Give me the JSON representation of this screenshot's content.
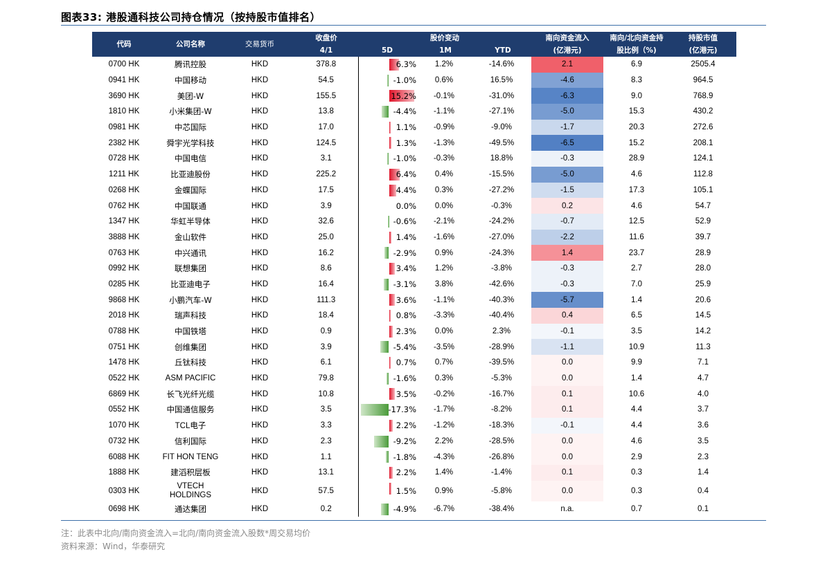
{
  "title": "图表33:  港股通科技公司持仓情况（按持股市值排名）",
  "headers": {
    "code": "代码",
    "name": "公司名称",
    "currency": "交易货币",
    "close_1": "收盘价",
    "close_2": "4/1",
    "change_group": "股价变动",
    "d5": "5D",
    "m1": "1M",
    "ytd": "YTD",
    "flow_1": "南向资金流入",
    "flow_2": "(亿港元)",
    "ratio_1": "南向/北向资金持",
    "ratio_2": "股比例（%)",
    "mcap_1": "持股市值",
    "mcap_2": "(亿港元)"
  },
  "colors": {
    "header_bg": "#1f3d6e",
    "bar_positive": "#e0142a",
    "bar_negative": "#4a9b3a",
    "flow_positive": "#f46a73",
    "flow_negative": "#5a86c6"
  },
  "rows": [
    {
      "code": "0700 HK",
      "name": "腾讯控股",
      "cur": "HKD",
      "close": "378.8",
      "d5": "6.3%",
      "d5v": 6.3,
      "m1": "1.2%",
      "ytd": "-14.6%",
      "flow": "2.1",
      "flowv": 2.1,
      "ratio": "6.9",
      "mcap": "2505.4"
    },
    {
      "code": "0941 HK",
      "name": "中国移动",
      "cur": "HKD",
      "close": "54.5",
      "d5": "-1.0%",
      "d5v": -1.0,
      "m1": "0.6%",
      "ytd": "16.5%",
      "flow": "-4.6",
      "flowv": -4.6,
      "ratio": "8.3",
      "mcap": "964.5"
    },
    {
      "code": "3690 HK",
      "name": "美团-W",
      "cur": "HKD",
      "close": "155.5",
      "d5": "15.2%",
      "d5v": 15.2,
      "m1": "-0.1%",
      "ytd": "-31.0%",
      "flow": "-6.3",
      "flowv": -6.3,
      "ratio": "9.0",
      "mcap": "768.9"
    },
    {
      "code": "1810 HK",
      "name": "小米集团-W",
      "cur": "HKD",
      "close": "13.8",
      "d5": "-4.4%",
      "d5v": -4.4,
      "m1": "-1.1%",
      "ytd": "-27.1%",
      "flow": "-5.0",
      "flowv": -5.0,
      "ratio": "15.3",
      "mcap": "430.2"
    },
    {
      "code": "0981 HK",
      "name": "中芯国际",
      "cur": "HKD",
      "close": "17.0",
      "d5": "1.1%",
      "d5v": 1.1,
      "m1": "-0.9%",
      "ytd": "-9.0%",
      "flow": "-1.7",
      "flowv": -1.7,
      "ratio": "20.3",
      "mcap": "272.6"
    },
    {
      "code": "2382 HK",
      "name": "舜宇光学科技",
      "cur": "HKD",
      "close": "124.5",
      "d5": "1.3%",
      "d5v": 1.3,
      "m1": "-1.3%",
      "ytd": "-49.5%",
      "flow": "-6.5",
      "flowv": -6.5,
      "ratio": "15.2",
      "mcap": "208.1"
    },
    {
      "code": "0728 HK",
      "name": "中国电信",
      "cur": "HKD",
      "close": "3.1",
      "d5": "-1.0%",
      "d5v": -1.0,
      "m1": "-0.3%",
      "ytd": "18.8%",
      "flow": "-0.3",
      "flowv": -0.3,
      "ratio": "28.9",
      "mcap": "124.1"
    },
    {
      "code": "1211 HK",
      "name": "比亚迪股份",
      "cur": "HKD",
      "close": "225.2",
      "d5": "6.4%",
      "d5v": 6.4,
      "m1": "0.4%",
      "ytd": "-15.5%",
      "flow": "-5.0",
      "flowv": -5.0,
      "ratio": "4.6",
      "mcap": "112.8"
    },
    {
      "code": "0268 HK",
      "name": "金蝶国际",
      "cur": "HKD",
      "close": "17.5",
      "d5": "4.4%",
      "d5v": 4.4,
      "m1": "0.3%",
      "ytd": "-27.2%",
      "flow": "-1.5",
      "flowv": -1.5,
      "ratio": "17.3",
      "mcap": "105.1"
    },
    {
      "code": "0762 HK",
      "name": "中国联通",
      "cur": "HKD",
      "close": "3.9",
      "d5": "0.0%",
      "d5v": 0.0,
      "m1": "0.0%",
      "ytd": "-0.3%",
      "flow": "0.2",
      "flowv": 0.2,
      "ratio": "4.6",
      "mcap": "54.7"
    },
    {
      "code": "1347 HK",
      "name": "华虹半导体",
      "cur": "HKD",
      "close": "32.6",
      "d5": "-0.6%",
      "d5v": -0.6,
      "m1": "-2.1%",
      "ytd": "-24.2%",
      "flow": "-0.7",
      "flowv": -0.7,
      "ratio": "12.5",
      "mcap": "52.9"
    },
    {
      "code": "3888 HK",
      "name": "金山软件",
      "cur": "HKD",
      "close": "25.0",
      "d5": "1.4%",
      "d5v": 1.4,
      "m1": "-1.6%",
      "ytd": "-27.0%",
      "flow": "-2.2",
      "flowv": -2.2,
      "ratio": "11.6",
      "mcap": "39.7"
    },
    {
      "code": "0763 HK",
      "name": "中兴通讯",
      "cur": "HKD",
      "close": "16.2",
      "d5": "-2.9%",
      "d5v": -2.9,
      "m1": "0.9%",
      "ytd": "-24.3%",
      "flow": "1.4",
      "flowv": 1.4,
      "ratio": "23.7",
      "mcap": "28.9"
    },
    {
      "code": "0992 HK",
      "name": "联想集团",
      "cur": "HKD",
      "close": "8.6",
      "d5": "3.4%",
      "d5v": 3.4,
      "m1": "1.2%",
      "ytd": "-3.8%",
      "flow": "-0.3",
      "flowv": -0.3,
      "ratio": "2.7",
      "mcap": "28.0"
    },
    {
      "code": "0285 HK",
      "name": "比亚迪电子",
      "cur": "HKD",
      "close": "16.4",
      "d5": "-3.1%",
      "d5v": -3.1,
      "m1": "3.8%",
      "ytd": "-42.6%",
      "flow": "-0.3",
      "flowv": -0.3,
      "ratio": "7.0",
      "mcap": "25.9"
    },
    {
      "code": "9868 HK",
      "name": "小鹏汽车-W",
      "cur": "HKD",
      "close": "111.3",
      "d5": "3.6%",
      "d5v": 3.6,
      "m1": "-1.1%",
      "ytd": "-40.3%",
      "flow": "-5.7",
      "flowv": -5.7,
      "ratio": "1.4",
      "mcap": "20.6"
    },
    {
      "code": "2018 HK",
      "name": "瑞声科技",
      "cur": "HKD",
      "close": "18.4",
      "d5": "0.8%",
      "d5v": 0.8,
      "m1": "-3.3%",
      "ytd": "-40.4%",
      "flow": "0.4",
      "flowv": 0.4,
      "ratio": "6.5",
      "mcap": "14.5"
    },
    {
      "code": "0788 HK",
      "name": "中国铁塔",
      "cur": "HKD",
      "close": "0.9",
      "d5": "2.3%",
      "d5v": 2.3,
      "m1": "0.0%",
      "ytd": "2.3%",
      "flow": "-0.1",
      "flowv": -0.1,
      "ratio": "3.5",
      "mcap": "14.2"
    },
    {
      "code": "0751 HK",
      "name": "创维集团",
      "cur": "HKD",
      "close": "3.9",
      "d5": "-5.4%",
      "d5v": -5.4,
      "m1": "-3.5%",
      "ytd": "-28.9%",
      "flow": "-1.1",
      "flowv": -1.1,
      "ratio": "10.9",
      "mcap": "11.3"
    },
    {
      "code": "1478 HK",
      "name": "丘钛科技",
      "cur": "HKD",
      "close": "6.1",
      "d5": "0.7%",
      "d5v": 0.7,
      "m1": "0.7%",
      "ytd": "-39.5%",
      "flow": "0.0",
      "flowv": 0.0,
      "ratio": "9.9",
      "mcap": "7.1"
    },
    {
      "code": "0522 HK",
      "name": "ASM PACIFIC",
      "cur": "HKD",
      "close": "79.8",
      "d5": "-1.6%",
      "d5v": -1.6,
      "m1": "0.3%",
      "ytd": "-5.3%",
      "flow": "0.0",
      "flowv": 0.0,
      "ratio": "1.4",
      "mcap": "4.7"
    },
    {
      "code": "6869 HK",
      "name": "长飞光纤光缆",
      "cur": "HKD",
      "close": "10.8",
      "d5": "3.5%",
      "d5v": 3.5,
      "m1": "-0.2%",
      "ytd": "-16.7%",
      "flow": "0.1",
      "flowv": 0.1,
      "ratio": "10.6",
      "mcap": "4.0"
    },
    {
      "code": "0552 HK",
      "name": "中国通信服务",
      "cur": "HKD",
      "close": "3.5",
      "d5": "-17.3%",
      "d5v": -17.3,
      "m1": "-1.7%",
      "ytd": "-8.2%",
      "flow": "0.1",
      "flowv": 0.1,
      "ratio": "4.4",
      "mcap": "3.7"
    },
    {
      "code": "1070 HK",
      "name": "TCL电子",
      "cur": "HKD",
      "close": "3.3",
      "d5": "2.2%",
      "d5v": 2.2,
      "m1": "-1.2%",
      "ytd": "-18.3%",
      "flow": "-0.1",
      "flowv": -0.1,
      "ratio": "4.4",
      "mcap": "3.6"
    },
    {
      "code": "0732 HK",
      "name": "信利国际",
      "cur": "HKD",
      "close": "2.3",
      "d5": "-9.2%",
      "d5v": -9.2,
      "m1": "2.2%",
      "ytd": "-28.5%",
      "flow": "0.0",
      "flowv": 0.0,
      "ratio": "4.6",
      "mcap": "3.5"
    },
    {
      "code": "6088 HK",
      "name": "FIT HON TENG",
      "cur": "HKD",
      "close": "1.1",
      "d5": "-1.8%",
      "d5v": -1.8,
      "m1": "-4.3%",
      "ytd": "-26.8%",
      "flow": "0.0",
      "flowv": 0.0,
      "ratio": "2.9",
      "mcap": "2.3"
    },
    {
      "code": "1888 HK",
      "name": "建滔积层板",
      "cur": "HKD",
      "close": "13.1",
      "d5": "2.2%",
      "d5v": 2.2,
      "m1": "1.4%",
      "ytd": "-1.4%",
      "flow": "0.1",
      "flowv": 0.1,
      "ratio": "0.3",
      "mcap": "1.4"
    },
    {
      "code": "0303 HK",
      "name": "VTECH HOLDINGS",
      "cur": "HKD",
      "close": "57.5",
      "d5": "1.5%",
      "d5v": 1.5,
      "m1": "0.9%",
      "ytd": "-5.8%",
      "flow": "0.0",
      "flowv": 0.0,
      "ratio": "0.3",
      "mcap": "0.4"
    },
    {
      "code": "0698 HK",
      "name": "通达集团",
      "cur": "HKD",
      "close": "0.2",
      "d5": "-4.9%",
      "d5v": -4.9,
      "m1": "-6.7%",
      "ytd": "-38.4%",
      "flow": "n.a.",
      "flowv": null,
      "ratio": "0.7",
      "mcap": "0.1"
    }
  ],
  "notes": {
    "note": "注：此表中北向/南向资金流入=北向/南向资金流入股数*周交易均价",
    "source": "资料来源：Wind，华泰研究"
  }
}
